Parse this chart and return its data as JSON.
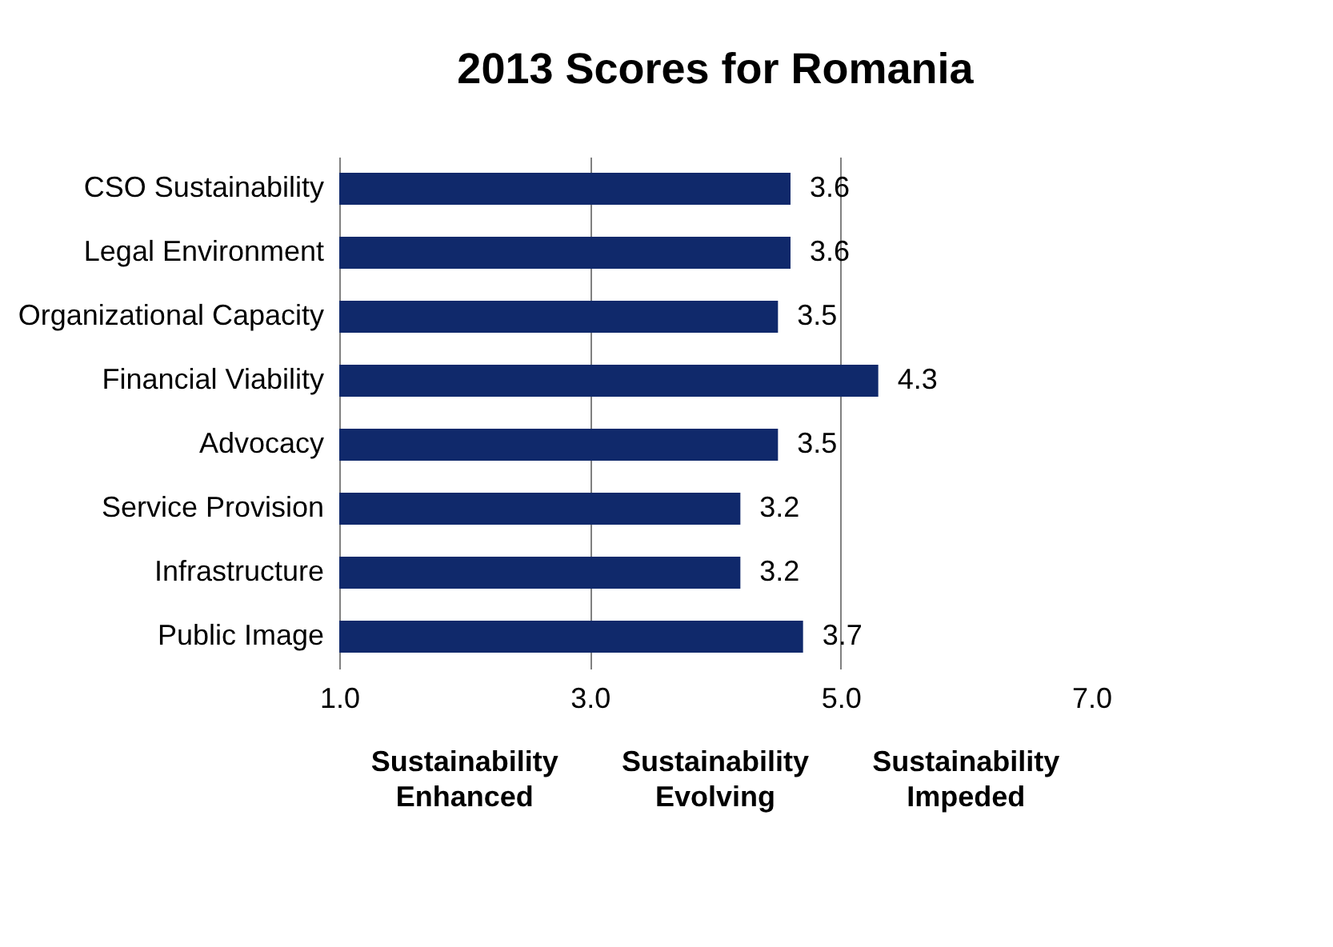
{
  "chart_data": {
    "type": "bar",
    "orientation": "horizontal",
    "title": "2013 Scores for Romania",
    "categories": [
      "CSO Sustainability",
      "Legal Environment",
      "Organizational Capacity",
      "Financial Viability",
      "Advocacy",
      "Service Provision",
      "Infrastructure",
      "Public Image"
    ],
    "values": [
      3.6,
      3.6,
      3.5,
      4.3,
      3.5,
      3.2,
      3.2,
      3.7
    ],
    "base": [
      1,
      1,
      1,
      1,
      1,
      1,
      1,
      1
    ],
    "color": "#10296b",
    "xlim": [
      1,
      7
    ],
    "xticks": [
      {
        "value": 1,
        "label": "1.0"
      },
      {
        "value": 3,
        "label": "3.0"
      },
      {
        "value": 5,
        "label": "5.0"
      },
      {
        "value": 7,
        "label": "7.0"
      }
    ],
    "grid": "x",
    "data_labels": true,
    "annotations": [
      "Sustainability Enhanced",
      "Sustainability Evolving",
      "Sustainability Impeded"
    ]
  }
}
